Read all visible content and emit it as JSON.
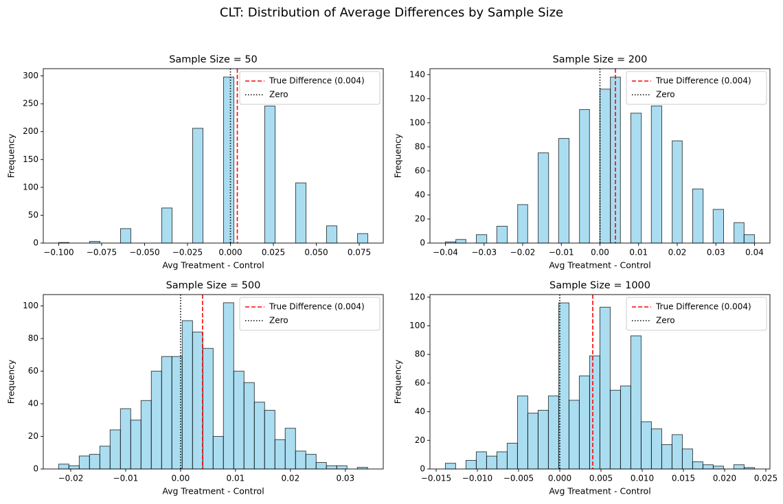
{
  "title": "CLT: Distribution of Average Differences by Sample Size",
  "chart_data": [
    {
      "type": "histogram",
      "title": "Sample Size = 50",
      "xlabel": "Avg Treatment - Control",
      "ylabel": "Frequency",
      "bins": [
        -0.1,
        -0.094,
        -0.088,
        -0.082,
        -0.076,
        -0.07,
        -0.064,
        -0.058,
        -0.052,
        -0.046,
        -0.04,
        -0.034,
        -0.028,
        -0.022,
        -0.016,
        -0.01,
        -0.004,
        0.002,
        0.008,
        0.014,
        0.02,
        0.026,
        0.032,
        0.038,
        0.044,
        0.05,
        0.056,
        0.062,
        0.068,
        0.074,
        0.08
      ],
      "values": [
        1,
        0,
        0,
        3,
        0,
        0,
        26,
        0,
        0,
        0,
        63,
        0,
        0,
        206,
        0,
        0,
        298,
        0,
        0,
        0,
        246,
        0,
        0,
        108,
        0,
        0,
        31,
        0,
        0,
        17
      ],
      "color": "#87ceeb",
      "edgecolor": "#000000",
      "alpha": 0.7,
      "xlim": [
        -0.109,
        0.089
      ],
      "ylim": [
        0,
        313
      ],
      "xticks": [
        {
          "value": -0.1,
          "label": "−0.100"
        },
        {
          "value": -0.075,
          "label": "−0.075"
        },
        {
          "value": -0.05,
          "label": "−0.050"
        },
        {
          "value": -0.025,
          "label": "−0.025"
        },
        {
          "value": 0,
          "label": "0.000"
        },
        0.025,
        {
          "value": 0.05,
          "label": "0.050"
        },
        0.075
      ],
      "yticks": [
        0,
        50,
        100,
        150,
        200,
        250,
        300
      ],
      "lines": [
        {
          "x": 0.004,
          "label": "True Difference (0.004)",
          "color": "#ff0000",
          "style": "dashed"
        },
        {
          "x": 0,
          "label": "Zero",
          "color": "#000000",
          "style": "dotted"
        }
      ],
      "legend": "upper right"
    },
    {
      "type": "histogram",
      "title": "Sample Size = 200",
      "xlabel": "Avg Treatment - Control",
      "ylabel": "Frequency",
      "bins": [
        -0.04,
        -0.0373,
        -0.0347,
        -0.032,
        -0.0293,
        -0.0267,
        -0.024,
        -0.0213,
        -0.0187,
        -0.016,
        -0.0133,
        -0.0107,
        -0.008,
        -0.0053,
        -0.0027,
        0,
        0.0027,
        0.0053,
        0.008,
        0.0107,
        0.0133,
        0.016,
        0.0187,
        0.0213,
        0.024,
        0.0267,
        0.0293,
        0.032,
        0.0347,
        0.0373,
        0.04
      ],
      "values": [
        1,
        3,
        0,
        7,
        0,
        14,
        0,
        32,
        0,
        75,
        0,
        87,
        0,
        111,
        0,
        128,
        138,
        0,
        108,
        0,
        114,
        0,
        85,
        0,
        45,
        0,
        28,
        0,
        17,
        7
      ],
      "color": "#87ceeb",
      "edgecolor": "#000000",
      "alpha": 0.7,
      "xlim": [
        -0.044,
        0.044
      ],
      "ylim": [
        0,
        145
      ],
      "xticks": [
        {
          "value": -0.04,
          "label": "−0.04"
        },
        {
          "value": -0.03,
          "label": "−0.03"
        },
        {
          "value": -0.02,
          "label": "−0.02"
        },
        {
          "value": -0.01,
          "label": "−0.01"
        },
        {
          "value": 0,
          "label": "0.00"
        },
        0.01,
        0.02,
        0.03,
        0.04
      ],
      "yticks": [
        0,
        20,
        40,
        60,
        80,
        100,
        120,
        140
      ],
      "lines": [
        {
          "x": 0.004,
          "label": "True Difference (0.004)",
          "color": "#ff0000",
          "style": "dashed"
        },
        {
          "x": 0,
          "label": "Zero",
          "color": "#000000",
          "style": "dotted"
        }
      ],
      "legend": "upper right"
    },
    {
      "type": "histogram",
      "title": "Sample Size = 500",
      "xlabel": "Avg Treatment - Control",
      "ylabel": "Frequency",
      "bins": [
        -0.0222,
        -0.02033,
        -0.01845,
        -0.01658,
        -0.0147,
        -0.01283,
        -0.01095,
        -0.00908,
        -0.0072,
        -0.00533,
        -0.00345,
        -0.00158,
        0.0003,
        0.00218,
        0.00405,
        0.00593,
        0.0078,
        0.00968,
        0.01155,
        0.01343,
        0.0153,
        0.01718,
        0.01905,
        0.02093,
        0.0228,
        0.02468,
        0.02655,
        0.02843,
        0.0303,
        0.03218,
        0.03405
      ],
      "values": [
        3,
        2,
        8,
        9,
        14,
        24,
        37,
        30,
        42,
        60,
        69,
        69,
        91,
        84,
        74,
        20,
        102,
        60,
        53,
        41,
        36,
        18,
        25,
        11,
        9,
        4,
        2,
        2,
        0,
        1
      ],
      "color": "#87ceeb",
      "edgecolor": "#000000",
      "alpha": 0.7,
      "xlim": [
        -0.025,
        0.0369
      ],
      "ylim": [
        0,
        107
      ],
      "xticks": [
        {
          "value": -0.02,
          "label": "−0.02"
        },
        {
          "value": -0.01,
          "label": "−0.01"
        },
        {
          "value": 0,
          "label": "0.00"
        },
        0.01,
        0.02,
        0.03
      ],
      "yticks": [
        0,
        20,
        40,
        60,
        80,
        100
      ],
      "lines": [
        {
          "x": 0.004,
          "label": "True Difference (0.004)",
          "color": "#ff0000",
          "style": "dashed"
        },
        {
          "x": 0,
          "label": "Zero",
          "color": "#000000",
          "style": "dotted"
        }
      ],
      "legend": "upper right"
    },
    {
      "type": "histogram",
      "title": "Sample Size = 1000",
      "xlabel": "Avg Treatment - Control",
      "ylabel": "Frequency",
      "bins": [
        -0.01388,
        -0.01263,
        -0.01138,
        -0.01013,
        -0.00888,
        -0.00763,
        -0.00638,
        -0.00513,
        -0.00388,
        -0.00263,
        -0.00138,
        -0.00013,
        0.00112,
        0.00237,
        0.00362,
        0.00487,
        0.00612,
        0.00737,
        0.00862,
        0.00987,
        0.01112,
        0.01237,
        0.01362,
        0.01487,
        0.01612,
        0.01737,
        0.01862,
        0.01987,
        0.02112,
        0.02237,
        0.02362
      ],
      "values": [
        4,
        0,
        6,
        12,
        9,
        12,
        18,
        51,
        39,
        41,
        51,
        116,
        48,
        65,
        79,
        113,
        55,
        58,
        93,
        33,
        28,
        17,
        24,
        14,
        5,
        3,
        2,
        0,
        3,
        1
      ],
      "color": "#87ceeb",
      "edgecolor": "#000000",
      "alpha": 0.7,
      "xlim": [
        -0.01575,
        0.0255
      ],
      "ylim": [
        0,
        121.8
      ],
      "xticks": [
        {
          "value": -0.015,
          "label": "−0.015"
        },
        {
          "value": -0.01,
          "label": "−0.010"
        },
        {
          "value": -0.005,
          "label": "−0.005"
        },
        {
          "value": 0,
          "label": "0.000"
        },
        0.005,
        {
          "value": 0.01,
          "label": "0.010"
        },
        0.015,
        {
          "value": 0.02,
          "label": "0.020"
        },
        0.025
      ],
      "yticks": [
        0,
        20,
        40,
        60,
        80,
        100,
        120
      ],
      "lines": [
        {
          "x": 0.004,
          "label": "True Difference (0.004)",
          "color": "#ff0000",
          "style": "dashed"
        },
        {
          "x": 0,
          "label": "Zero",
          "color": "#000000",
          "style": "dotted"
        }
      ],
      "legend": "upper right"
    }
  ]
}
